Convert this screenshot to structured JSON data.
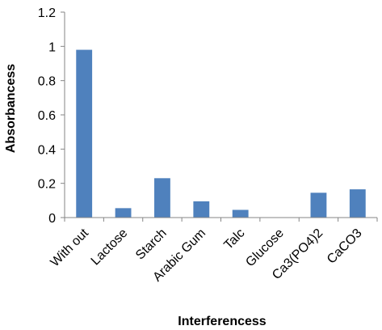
{
  "chart_data": {
    "type": "bar",
    "title": "",
    "xlabel": "Interferencess",
    "ylabel": "Absorbancess",
    "categories": [
      "With out",
      "Lactose",
      "Starch",
      "Arabic Gum",
      "Talc",
      "Glucose",
      "Ca3(PO4)2",
      "CaCO3"
    ],
    "values": [
      0.98,
      0.055,
      0.23,
      0.095,
      0.045,
      0.0,
      0.145,
      0.165
    ],
    "ylim": [
      0,
      1.2
    ],
    "yticks": [
      "0",
      "0.2",
      "0.4",
      "0.6",
      "0.8",
      "1",
      "1.2"
    ],
    "ytick_values": [
      0,
      0.2,
      0.4,
      0.6,
      0.8,
      1.0,
      1.2
    ],
    "grid": false,
    "legend": "none",
    "bar_color": "#4f81bd",
    "axis_color": "#868686"
  }
}
